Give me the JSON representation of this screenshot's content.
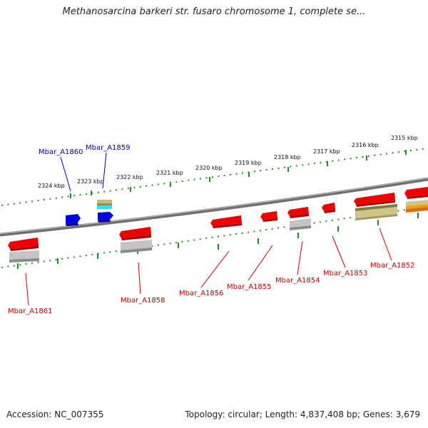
{
  "title": "Methanosarcina barkeri str. fusaro chromosome 1, complete se...",
  "accession": "Accession: NC_007355",
  "summary": "Topology: circular; Length: 4,837,408 bp; Genes: 3,679",
  "scale_labels": [
    "2324 kbp",
    "2323 kbp",
    "2322 kbp",
    "2321 kbp",
    "2320 kbp",
    "2319 kbp",
    "2318 kbp",
    "2317 kbp",
    "2316 kbp",
    "2315 kbp"
  ],
  "gene_labels": [
    "Mbar_A1860",
    "Mbar_A1859",
    "Mbar_A1861",
    "Mbar_A1858",
    "Mbar_A1856",
    "Mbar_A1855",
    "Mbar_A1854",
    "Mbar_A1853",
    "Mbar_A1852"
  ],
  "colors": {
    "backbone": "#808080",
    "forward_gene": "#0000dd",
    "reverse_gene": "#ee0000",
    "tick": "#2a8a2a",
    "gray_feature": "#b5b5b5",
    "tan_feature": "#c8b87a",
    "cyan_feature": "#33e0ee",
    "orange_feature": "#f0a020"
  }
}
